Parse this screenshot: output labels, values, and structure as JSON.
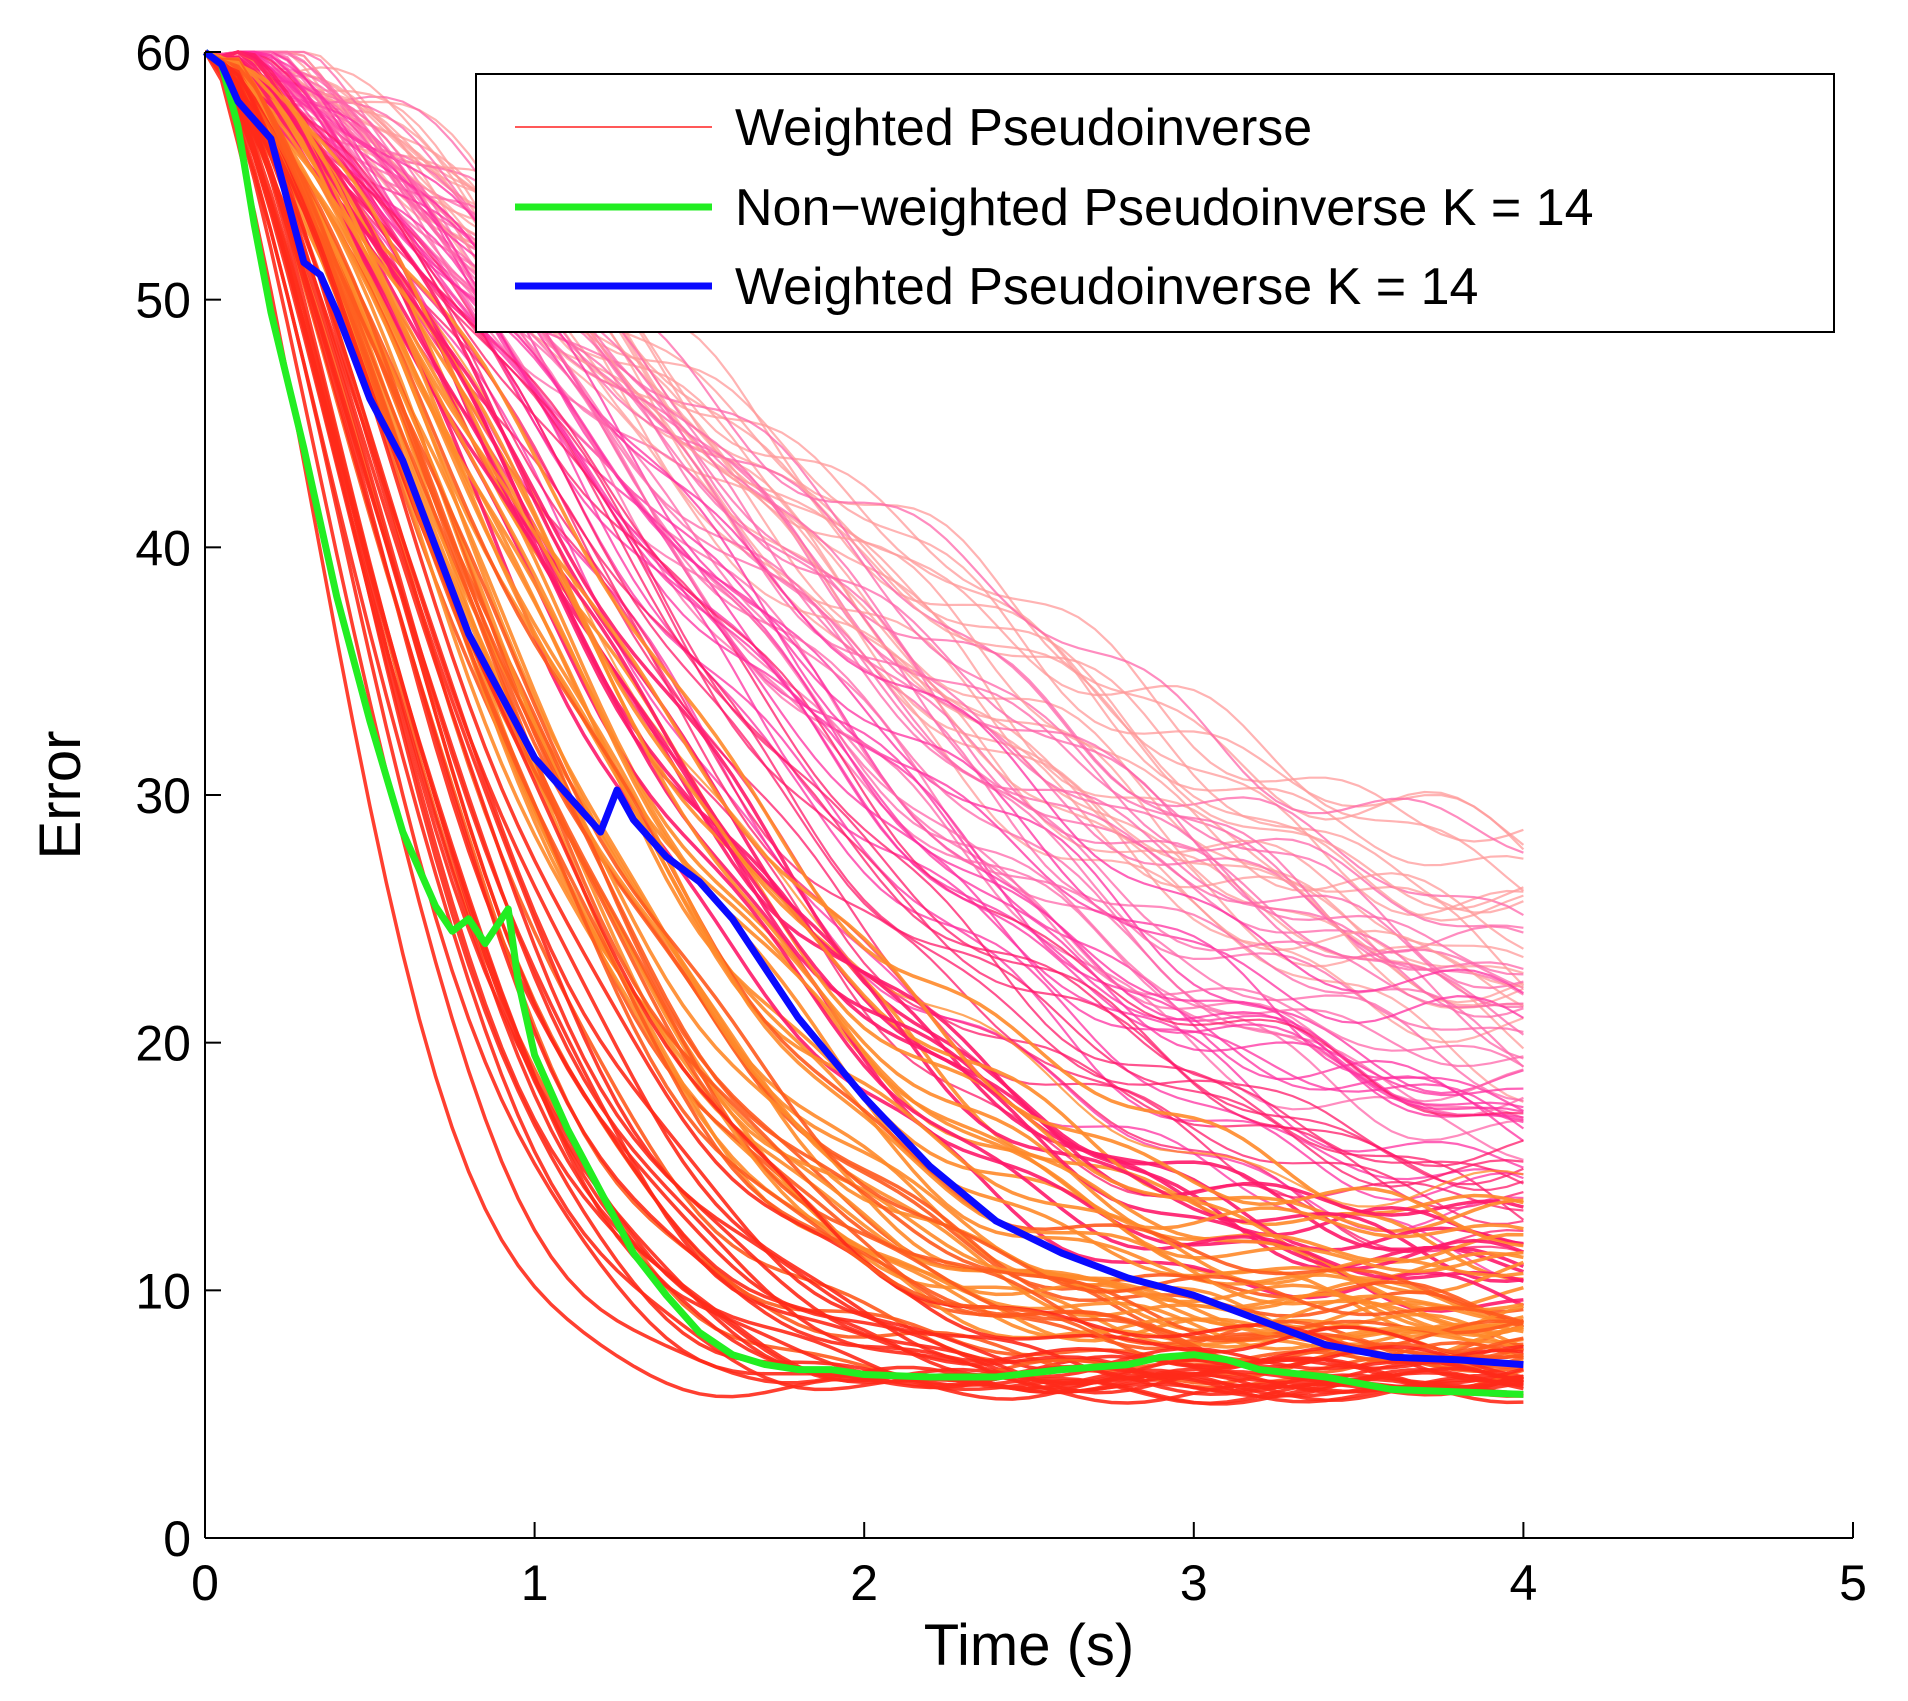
{
  "chart_data": {
    "type": "line",
    "title": "",
    "xlabel": "Time (s)",
    "ylabel": "Error",
    "xlim": [
      0,
      5
    ],
    "ylim": [
      0,
      60
    ],
    "xticks": [
      0,
      1,
      2,
      3,
      4,
      5
    ],
    "yticks": [
      0,
      10,
      20,
      30,
      40,
      50,
      60
    ],
    "grid": false,
    "legend_position": "top-right",
    "legend": [
      {
        "label": "Weighted Pseudoinverse",
        "color": "#ff2020"
      },
      {
        "label": "Non−weighted Pseudoinverse K = 14",
        "color": "#22ee22"
      },
      {
        "label": "Weighted Pseudoinverse K = 14",
        "color": "#0a0aff"
      }
    ],
    "bundle": {
      "name": "Weighted Pseudoinverse",
      "count": 150,
      "x_end": 4.0,
      "start": 60,
      "final_range": [
        6.0,
        26.5
      ],
      "colors": [
        "#ff2a1a",
        "#ff5a1e",
        "#ff8a2a",
        "#ff1a6a",
        "#ff2fa0",
        "#ff66aa",
        "#ff9a9a"
      ]
    },
    "series": [
      {
        "name": "Non−weighted Pseudoinverse K = 14",
        "color": "#22ee22",
        "x": [
          0.0,
          0.05,
          0.1,
          0.15,
          0.2,
          0.3,
          0.4,
          0.5,
          0.6,
          0.7,
          0.75,
          0.8,
          0.85,
          0.9,
          0.92,
          0.95,
          1.0,
          1.1,
          1.2,
          1.3,
          1.4,
          1.5,
          1.6,
          1.7,
          1.8,
          1.9,
          2.0,
          2.2,
          2.4,
          2.6,
          2.8,
          2.9,
          3.0,
          3.1,
          3.2,
          3.4,
          3.6,
          3.8,
          4.0
        ],
        "y": [
          60,
          59.5,
          57,
          53,
          49.5,
          44,
          38,
          33,
          28.5,
          25.5,
          24.5,
          25,
          24,
          25,
          25.4,
          22.5,
          19.5,
          16.5,
          14,
          11.5,
          9.8,
          8.3,
          7.4,
          7.0,
          6.8,
          6.8,
          6.6,
          6.5,
          6.5,
          6.8,
          7.0,
          7.3,
          7.4,
          7.2,
          6.8,
          6.5,
          6.0,
          5.9,
          5.8
        ]
      },
      {
        "name": "Weighted Pseudoinverse K = 14",
        "color": "#0a0aff",
        "x": [
          0.0,
          0.05,
          0.1,
          0.2,
          0.3,
          0.35,
          0.4,
          0.5,
          0.6,
          0.7,
          0.8,
          0.9,
          1.0,
          1.1,
          1.2,
          1.25,
          1.3,
          1.4,
          1.5,
          1.6,
          1.7,
          1.8,
          2.0,
          2.2,
          2.4,
          2.6,
          2.8,
          3.0,
          3.2,
          3.4,
          3.6,
          3.8,
          4.0
        ],
        "y": [
          60,
          59.5,
          58,
          56.5,
          51.5,
          51,
          49.5,
          46,
          43.5,
          40,
          36.5,
          34,
          31.5,
          30,
          28.5,
          30.2,
          29,
          27.5,
          26.5,
          25,
          23,
          21,
          17.8,
          15,
          12.8,
          11.5,
          10.5,
          9.8,
          8.8,
          7.8,
          7.3,
          7.2,
          7.0
        ]
      }
    ]
  }
}
